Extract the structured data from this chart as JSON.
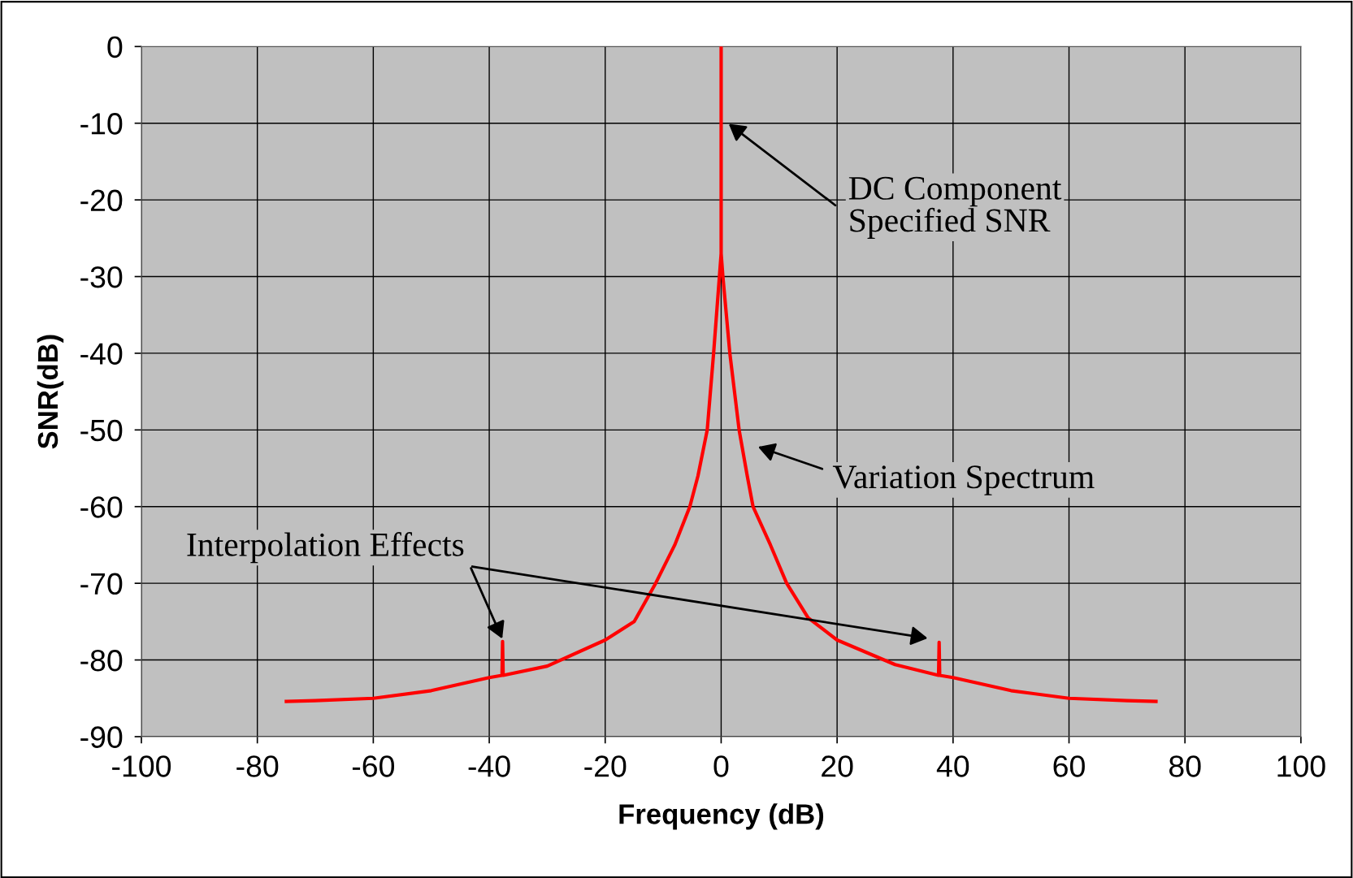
{
  "chart_data": {
    "type": "line",
    "xlabel": "Frequency (dB)",
    "ylabel": "SNR(dB)",
    "x": [
      -75,
      -70,
      -60,
      -50,
      -40,
      -37.8,
      -37.7,
      -37.6,
      -30,
      -20,
      -15,
      -11.3,
      -8,
      -5.4,
      -4,
      -2.4,
      -1.3,
      -0.3,
      0,
      0,
      0,
      0.3,
      1.5,
      3.1,
      4.5,
      5.5,
      8.5,
      11.3,
      15,
      20,
      30,
      37.5,
      37.6,
      37.7,
      40,
      50,
      60,
      70,
      75
    ],
    "series": [
      {
        "color": "#ff0000",
        "values": [
          -85.4,
          -85.3,
          -85.0,
          -84.0,
          -82.3,
          -82.0,
          -77.6,
          -82.0,
          -80.8,
          -77.4,
          -75.0,
          -70,
          -65,
          -60,
          -56,
          -50,
          -40,
          -30,
          -27,
          0,
          -27,
          -30,
          -40,
          -50,
          -56,
          -60,
          -65,
          -70,
          -74.5,
          -77.4,
          -80.6,
          -82.0,
          -77.7,
          -82.0,
          -82.3,
          -84.0,
          -85.0,
          -85.3,
          -85.4
        ]
      }
    ],
    "xlim": [
      -100,
      100
    ],
    "xticks": [
      -100,
      -80,
      -60,
      -40,
      -20,
      0,
      20,
      40,
      60,
      80,
      100
    ],
    "ylim": [
      -90,
      0
    ],
    "yticks": [
      -90,
      -80,
      -70,
      -60,
      -50,
      -40,
      -30,
      -20,
      -10,
      0
    ],
    "grid": true,
    "marker": "none",
    "line_style": "solid",
    "annotations": [
      "DC Component\nSpecified SNR",
      "Variation Spectrum",
      "Interpolation Effects"
    ]
  }
}
